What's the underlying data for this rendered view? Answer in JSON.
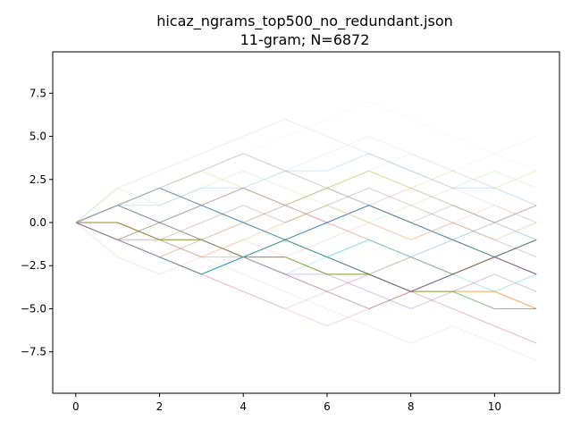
{
  "chart_data": {
    "type": "line",
    "title": "hicaz_ngrams_top500_no_redundant.json",
    "subtitle": "11-gram; N=6872",
    "xlabel": "",
    "ylabel": "",
    "xlim": [
      -0.55,
      11.55
    ],
    "ylim": [
      -9.9,
      9.9
    ],
    "x_ticks": [
      0,
      2,
      4,
      6,
      8,
      10
    ],
    "y_ticks": [
      -7.5,
      -5.0,
      -2.5,
      0.0,
      2.5,
      5.0,
      7.5
    ],
    "x_tick_labels": [
      "0",
      "2",
      "4",
      "6",
      "8",
      "10"
    ],
    "y_tick_labels": [
      "−7.5",
      "−5.0",
      "−2.5",
      "0.0",
      "2.5",
      "5.0",
      "7.5"
    ],
    "grid": false,
    "legend": "none",
    "x": [
      0,
      1,
      2,
      3,
      4,
      5,
      6,
      7,
      8,
      9,
      10,
      11
    ],
    "series": [
      {
        "values": [
          0,
          -1,
          -2,
          -3,
          -2,
          -1,
          0,
          1,
          0,
          -1,
          -2,
          -1
        ],
        "color": "#1f77b4",
        "opacity": 0.9
      },
      {
        "values": [
          0,
          0,
          -1,
          -1,
          -2,
          -2,
          -3,
          -3,
          -4,
          -4,
          -4,
          -5
        ],
        "color": "#ff7f0e",
        "opacity": 0.7
      },
      {
        "values": [
          0,
          0,
          -1,
          -1,
          -2,
          -2,
          -3,
          -3,
          -4,
          -4,
          -5,
          -5
        ],
        "color": "#2ca02c",
        "opacity": 0.6
      },
      {
        "values": [
          0,
          1,
          2,
          1,
          0,
          -1,
          -2,
          -3,
          -4,
          -3,
          -2,
          -3
        ],
        "color": "#1f3a93",
        "opacity": 0.7
      },
      {
        "values": [
          0,
          -1,
          -1,
          -2,
          -2,
          -3,
          -3,
          -4,
          -5,
          -4,
          -3,
          -4
        ],
        "color": "#9467bd",
        "opacity": 0.4
      },
      {
        "values": [
          0,
          1,
          0,
          -1,
          -2,
          -3,
          -4,
          -5,
          -4,
          -3,
          -2,
          -1
        ],
        "color": "#8c564b",
        "opacity": 0.5
      },
      {
        "values": [
          0,
          -1,
          0,
          1,
          2,
          1,
          0,
          -1,
          -2,
          -3,
          -2,
          -3
        ],
        "color": "#d62728",
        "opacity": 0.35
      },
      {
        "values": [
          0,
          1,
          2,
          3,
          4,
          3,
          2,
          1,
          0,
          -1,
          -2,
          -3
        ],
        "color": "#7f7f7f",
        "opacity": 0.35
      },
      {
        "values": [
          0,
          -1,
          -2,
          -1,
          0,
          1,
          2,
          3,
          2,
          1,
          0,
          1
        ],
        "color": "#bcbd22",
        "opacity": 0.35
      },
      {
        "values": [
          0,
          1,
          0,
          1,
          0,
          -1,
          -2,
          -1,
          -2,
          -3,
          -4,
          -3
        ],
        "color": "#17becf",
        "opacity": 0.35
      },
      {
        "values": [
          0,
          2,
          3,
          4,
          5,
          6,
          5,
          4,
          3,
          2,
          1,
          0
        ],
        "color": "#b0b0b0",
        "opacity": 0.25
      },
      {
        "values": [
          0,
          -1,
          -2,
          -3,
          -4,
          -5,
          -4,
          -3,
          -2,
          -1,
          0,
          1
        ],
        "color": "#e377c2",
        "opacity": 0.3
      },
      {
        "values": [
          0,
          1,
          1,
          2,
          2,
          3,
          3,
          4,
          3,
          2,
          2,
          1
        ],
        "color": "#1f77b4",
        "opacity": 0.2
      },
      {
        "values": [
          0,
          -1,
          -1,
          -2,
          -3,
          -4,
          -5,
          -6,
          -7,
          -6,
          -7,
          -8
        ],
        "color": "#aaaaaa",
        "opacity": 0.2
      },
      {
        "values": [
          0,
          1,
          2,
          3,
          2,
          1,
          2,
          3,
          2,
          3,
          2,
          3
        ],
        "color": "#bcbd22",
        "opacity": 0.25
      },
      {
        "values": [
          0,
          -1,
          -2,
          -3,
          -4,
          -5,
          -6,
          -5,
          -4,
          -5,
          -6,
          -7
        ],
        "color": "#d62728",
        "opacity": 0.2
      },
      {
        "values": [
          0,
          0,
          -1,
          -2,
          -1,
          0,
          1,
          0,
          -1,
          0,
          -1,
          0
        ],
        "color": "#ff7f0e",
        "opacity": 0.3
      },
      {
        "values": [
          0,
          1,
          0,
          -1,
          0,
          1,
          0,
          1,
          2,
          1,
          0,
          -1
        ],
        "color": "#9467bd",
        "opacity": 0.25
      },
      {
        "values": [
          0,
          -1,
          0,
          -1,
          -2,
          -1,
          -2,
          -3,
          -2,
          -3,
          -2,
          -1
        ],
        "color": "#2ca02c",
        "opacity": 0.3
      },
      {
        "values": [
          0,
          1,
          2,
          1,
          2,
          3,
          2,
          3,
          4,
          3,
          4,
          5
        ],
        "color": "#c7c7c7",
        "opacity": 0.2
      },
      {
        "values": [
          0,
          0,
          -1,
          0,
          1,
          0,
          1,
          2,
          1,
          0,
          -1,
          -2
        ],
        "color": "#8c564b",
        "opacity": 0.3
      },
      {
        "values": [
          0,
          -1,
          -2,
          -3,
          -2,
          -3,
          -2,
          -1,
          -2,
          -1,
          0,
          -1
        ],
        "color": "#17becf",
        "opacity": 0.25
      },
      {
        "values": [
          0,
          1,
          2,
          3,
          4,
          5,
          6,
          7,
          6,
          5,
          4,
          3
        ],
        "color": "#dddddd",
        "opacity": 0.2
      },
      {
        "values": [
          0,
          -1,
          -2,
          -1,
          -2,
          -3,
          -4,
          -3,
          -4,
          -5,
          -6,
          -7
        ],
        "color": "#e377c2",
        "opacity": 0.3
      },
      {
        "values": [
          0,
          1,
          0,
          1,
          2,
          1,
          2,
          1,
          0,
          1,
          0,
          1
        ],
        "color": "#7f7f7f",
        "opacity": 0.3
      },
      {
        "values": [
          0,
          -2,
          -3,
          -2,
          -1,
          -2,
          -1,
          0,
          -1,
          0,
          1,
          0
        ],
        "color": "#ff9896",
        "opacity": 0.3
      },
      {
        "values": [
          0,
          2,
          1,
          2,
          3,
          2,
          1,
          0,
          1,
          2,
          3,
          2
        ],
        "color": "#98df8a",
        "opacity": 0.3
      },
      {
        "values": [
          0,
          1,
          2,
          3,
          4,
          3,
          4,
          5,
          4,
          3,
          2,
          1
        ],
        "color": "#aec7e8",
        "opacity": 0.25
      }
    ]
  }
}
